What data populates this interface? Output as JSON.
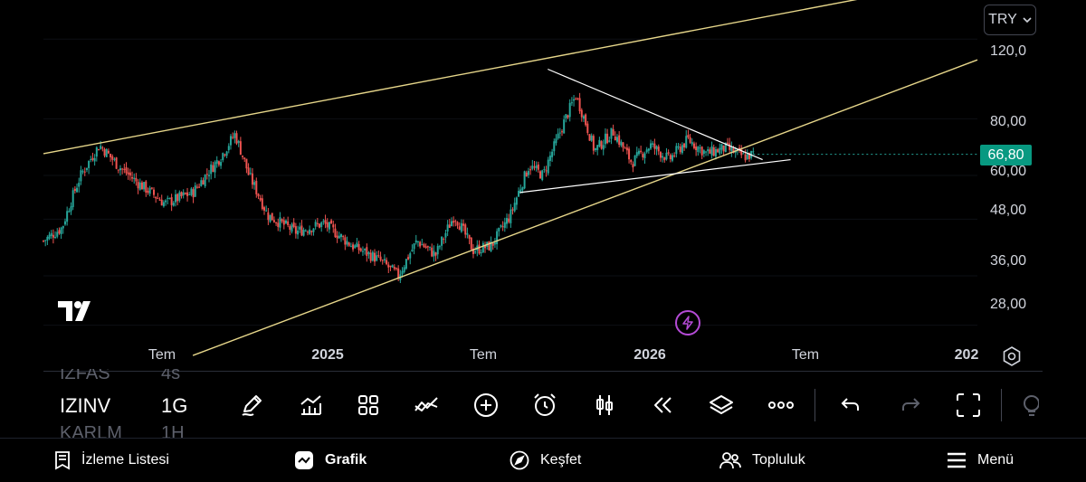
{
  "currency": {
    "label": "TRY",
    "icon": "chevron-down-icon"
  },
  "price_axis": {
    "labels": [
      "120,0",
      "80,00",
      "60,00",
      "48,00",
      "36,00",
      "28,00"
    ],
    "last_price": "66,80",
    "last_price_color": "#089981"
  },
  "time_axis": {
    "labels": [
      "Tem",
      "2025",
      "Tem",
      "2026",
      "Tem",
      "202"
    ]
  },
  "symbols": {
    "above": {
      "symbol": "IZFAS",
      "interval": "4s"
    },
    "active": {
      "symbol": "IZINV",
      "interval": "1G"
    },
    "below": {
      "symbol": "KARLM",
      "interval": "1H"
    }
  },
  "toolbar_icons": [
    "pencil-icon",
    "indicators-icon",
    "widgets-grid-icon",
    "compare-icon",
    "add-icon",
    "alarm-icon",
    "candles-icon",
    "replay-icon",
    "layers-icon",
    "more-icon",
    "undo-icon",
    "redo-icon",
    "fullscreen-icon",
    "lightbulb-icon"
  ],
  "nav": {
    "watchlist": "İzleme Listesi",
    "chart": "Grafik",
    "explore": "Keşfet",
    "community": "Topluluk",
    "menu": "Menü"
  },
  "colors": {
    "background": "#000000",
    "up": "#26a69a",
    "down": "#ef5350",
    "trendline": "#e6d68a",
    "triangle": "#ffffff",
    "bolt": "#b44bd6"
  },
  "chart_data": {
    "type": "candlestick",
    "currency": "TRY",
    "y_axis_ticks": [
      28,
      36,
      48,
      60,
      80,
      120
    ],
    "scale": "log",
    "x_axis_ticks": [
      "Tem",
      "2025",
      "Tem",
      "2026",
      "Tem",
      "202"
    ],
    "last_price": 66.8,
    "close_path": [
      {
        "t": 0.0,
        "p": 43
      },
      {
        "t": 0.02,
        "p": 46
      },
      {
        "t": 0.04,
        "p": 60
      },
      {
        "t": 0.06,
        "p": 70
      },
      {
        "t": 0.08,
        "p": 63
      },
      {
        "t": 0.1,
        "p": 58
      },
      {
        "t": 0.13,
        "p": 52
      },
      {
        "t": 0.16,
        "p": 55
      },
      {
        "t": 0.19,
        "p": 66
      },
      {
        "t": 0.205,
        "p": 74
      },
      {
        "t": 0.22,
        "p": 60
      },
      {
        "t": 0.24,
        "p": 49
      },
      {
        "t": 0.27,
        "p": 45
      },
      {
        "t": 0.3,
        "p": 47
      },
      {
        "t": 0.33,
        "p": 42
      },
      {
        "t": 0.36,
        "p": 39
      },
      {
        "t": 0.38,
        "p": 36
      },
      {
        "t": 0.4,
        "p": 43
      },
      {
        "t": 0.42,
        "p": 40
      },
      {
        "t": 0.44,
        "p": 49
      },
      {
        "t": 0.46,
        "p": 41
      },
      {
        "t": 0.48,
        "p": 42
      },
      {
        "t": 0.5,
        "p": 49
      },
      {
        "t": 0.52,
        "p": 63
      },
      {
        "t": 0.535,
        "p": 60
      },
      {
        "t": 0.55,
        "p": 72
      },
      {
        "t": 0.57,
        "p": 90
      },
      {
        "t": 0.59,
        "p": 68
      },
      {
        "t": 0.61,
        "p": 75
      },
      {
        "t": 0.63,
        "p": 64
      },
      {
        "t": 0.65,
        "p": 70
      },
      {
        "t": 0.67,
        "p": 65
      },
      {
        "t": 0.69,
        "p": 72
      },
      {
        "t": 0.71,
        "p": 67
      },
      {
        "t": 0.73,
        "p": 69
      },
      {
        "t": 0.75,
        "p": 66
      },
      {
        "t": 0.76,
        "p": 66.8
      }
    ],
    "drawings": [
      {
        "name": "upper-channel-line",
        "from": {
          "t": 0.0,
          "p": 67
        },
        "to": {
          "t": 1.0,
          "p": 165
        }
      },
      {
        "name": "lower-channel-line",
        "from": {
          "t": 0.16,
          "p": 24
        },
        "to": {
          "t": 1.0,
          "p": 108
        }
      },
      {
        "name": "triangle-upper-line",
        "from": {
          "t": 0.54,
          "p": 103
        },
        "to": {
          "t": 0.77,
          "p": 65
        }
      },
      {
        "name": "triangle-lower-line",
        "from": {
          "t": 0.51,
          "p": 55
        },
        "to": {
          "t": 0.8,
          "p": 65
        }
      }
    ]
  }
}
